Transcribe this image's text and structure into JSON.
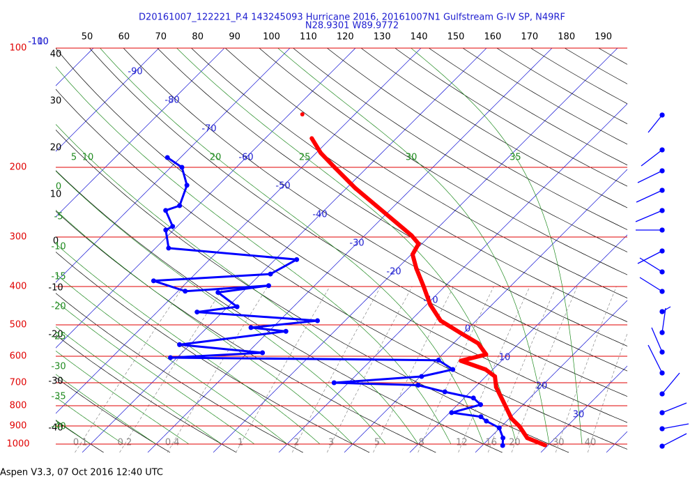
{
  "chart_data": {
    "type": "skew-t",
    "title": "D20161007_122221_P.4 143245093 Hurricane 2016, 20161007N1 Gulfstream G-IV SP, N49RF",
    "subtitle": "N28.9301 W89.9772",
    "footer": "Aspen V3.3, 07 Oct 2016  12:40 UTC",
    "ylim": [
      100,
      1050
    ],
    "yticks": [
      100,
      200,
      300,
      400,
      500,
      600,
      700,
      800,
      900,
      1000
    ],
    "log_scale": true,
    "isotherm_labels": [
      -110,
      -100,
      -90,
      -80,
      -70,
      -60,
      -50,
      -40,
      -30,
      -20,
      -10,
      0,
      10,
      20,
      30
    ],
    "theta_labels_left": [
      40,
      30,
      20,
      10,
      0,
      -10,
      -20,
      -30,
      -40
    ],
    "theta_labels_top": [
      50,
      60,
      70,
      80,
      90,
      100,
      110,
      120,
      130,
      140,
      150,
      160,
      170,
      180,
      190
    ],
    "moist_labels_top": [
      5,
      10,
      20,
      25,
      30,
      35
    ],
    "moist_labels_left": [
      0,
      -5,
      -10,
      -15,
      -20,
      -25,
      -30,
      -35,
      -40
    ],
    "mixing_ratio_labels": [
      0.1,
      0.2,
      0.4,
      1,
      2,
      3,
      5,
      8,
      12,
      16,
      20,
      30,
      40
    ],
    "series": [
      {
        "color": "#ff0000",
        "pressure": [
          1006,
          965,
          903,
          861,
          779,
          718,
          675,
          648,
          616,
          594,
          557,
          524,
          488,
          445,
          398,
          360,
          332,
          312,
          297,
          277,
          250,
          226,
          200,
          184,
          169,
          null,
          147
        ],
        "values": [
          29.5,
          25.7,
          22.8,
          20.3,
          16.4,
          13.2,
          11.4,
          8.9,
          3.8,
          6.7,
          3.8,
          -0.5,
          -5.4,
          -9.4,
          -13.4,
          -17.1,
          -19.8,
          -20.5,
          -22.9,
          -26.9,
          -32.8,
          -38.6,
          -45,
          -49.3,
          -52.9,
          null,
          -58
        ]
      },
      {
        "color": "#0000ff",
        "pressure": [
          1008,
          965,
          910,
          875,
          853,
          833,
          795,
          765,
          738,
          710,
          700,
          675,
          648,
          614,
          605,
          588,
          561,
          519,
          508,
          488,
          464,
          450,
          414,
          398,
          411,
          387,
          372,
          342,
          320,
          288,
          282,
          257,
          250,
          222,
          200,
          189
        ],
        "values": [
          23.1,
          22,
          19.9,
          16.9,
          15.4,
          10.3,
          13.5,
          11.4,
          6.1,
          1,
          -12.2,
          0.2,
          3.9,
          0.3,
          -41,
          -27.7,
          -41.6,
          -27.4,
          -33.3,
          -24.2,
          -43.9,
          -38.6,
          -43.7,
          -37,
          -48.9,
          -55.3,
          -38.5,
          -36.7,
          -58,
          -61.2,
          -60.7,
          -64.2,
          -62.8,
          -64.8,
          -68.3,
          -72
        ]
      }
    ]
  }
}
